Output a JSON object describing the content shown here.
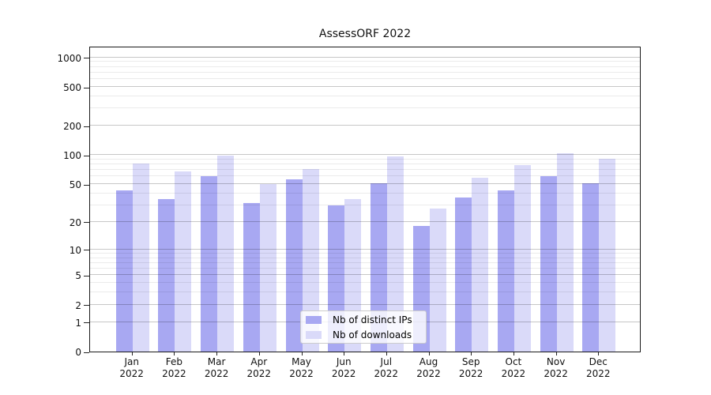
{
  "title": "AssessORF 2022",
  "chart_data": {
    "type": "bar",
    "title": "AssessORF 2022",
    "categories": [
      "Jan",
      "Feb",
      "Mar",
      "Apr",
      "May",
      "Jun",
      "Jul",
      "Aug",
      "Sep",
      "Oct",
      "Nov",
      "Dec"
    ],
    "category_year": "2022",
    "series": [
      {
        "name": "Nb of distinct IPs",
        "color": "#a8a8f2",
        "values": [
          43,
          35,
          60,
          32,
          56,
          30,
          51,
          18,
          36,
          43,
          61,
          51
        ]
      },
      {
        "name": "Nb of downloads",
        "color": "#dadaf9",
        "values": [
          82,
          68,
          98,
          50,
          72,
          35,
          97,
          28,
          58,
          79,
          104,
          92
        ]
      }
    ],
    "xlabel": "",
    "ylabel": "",
    "yscale": "log1p",
    "y_major_ticks": [
      0,
      1,
      2,
      5,
      10,
      20,
      50,
      100,
      200,
      500,
      1000
    ],
    "y_minor_ticks": [
      3,
      4,
      6,
      7,
      8,
      9,
      30,
      40,
      60,
      70,
      80,
      90,
      300,
      400,
      600,
      700,
      800,
      900
    ],
    "ylim": [
      0,
      1300
    ],
    "grid": true,
    "legend_position": "lower center"
  }
}
